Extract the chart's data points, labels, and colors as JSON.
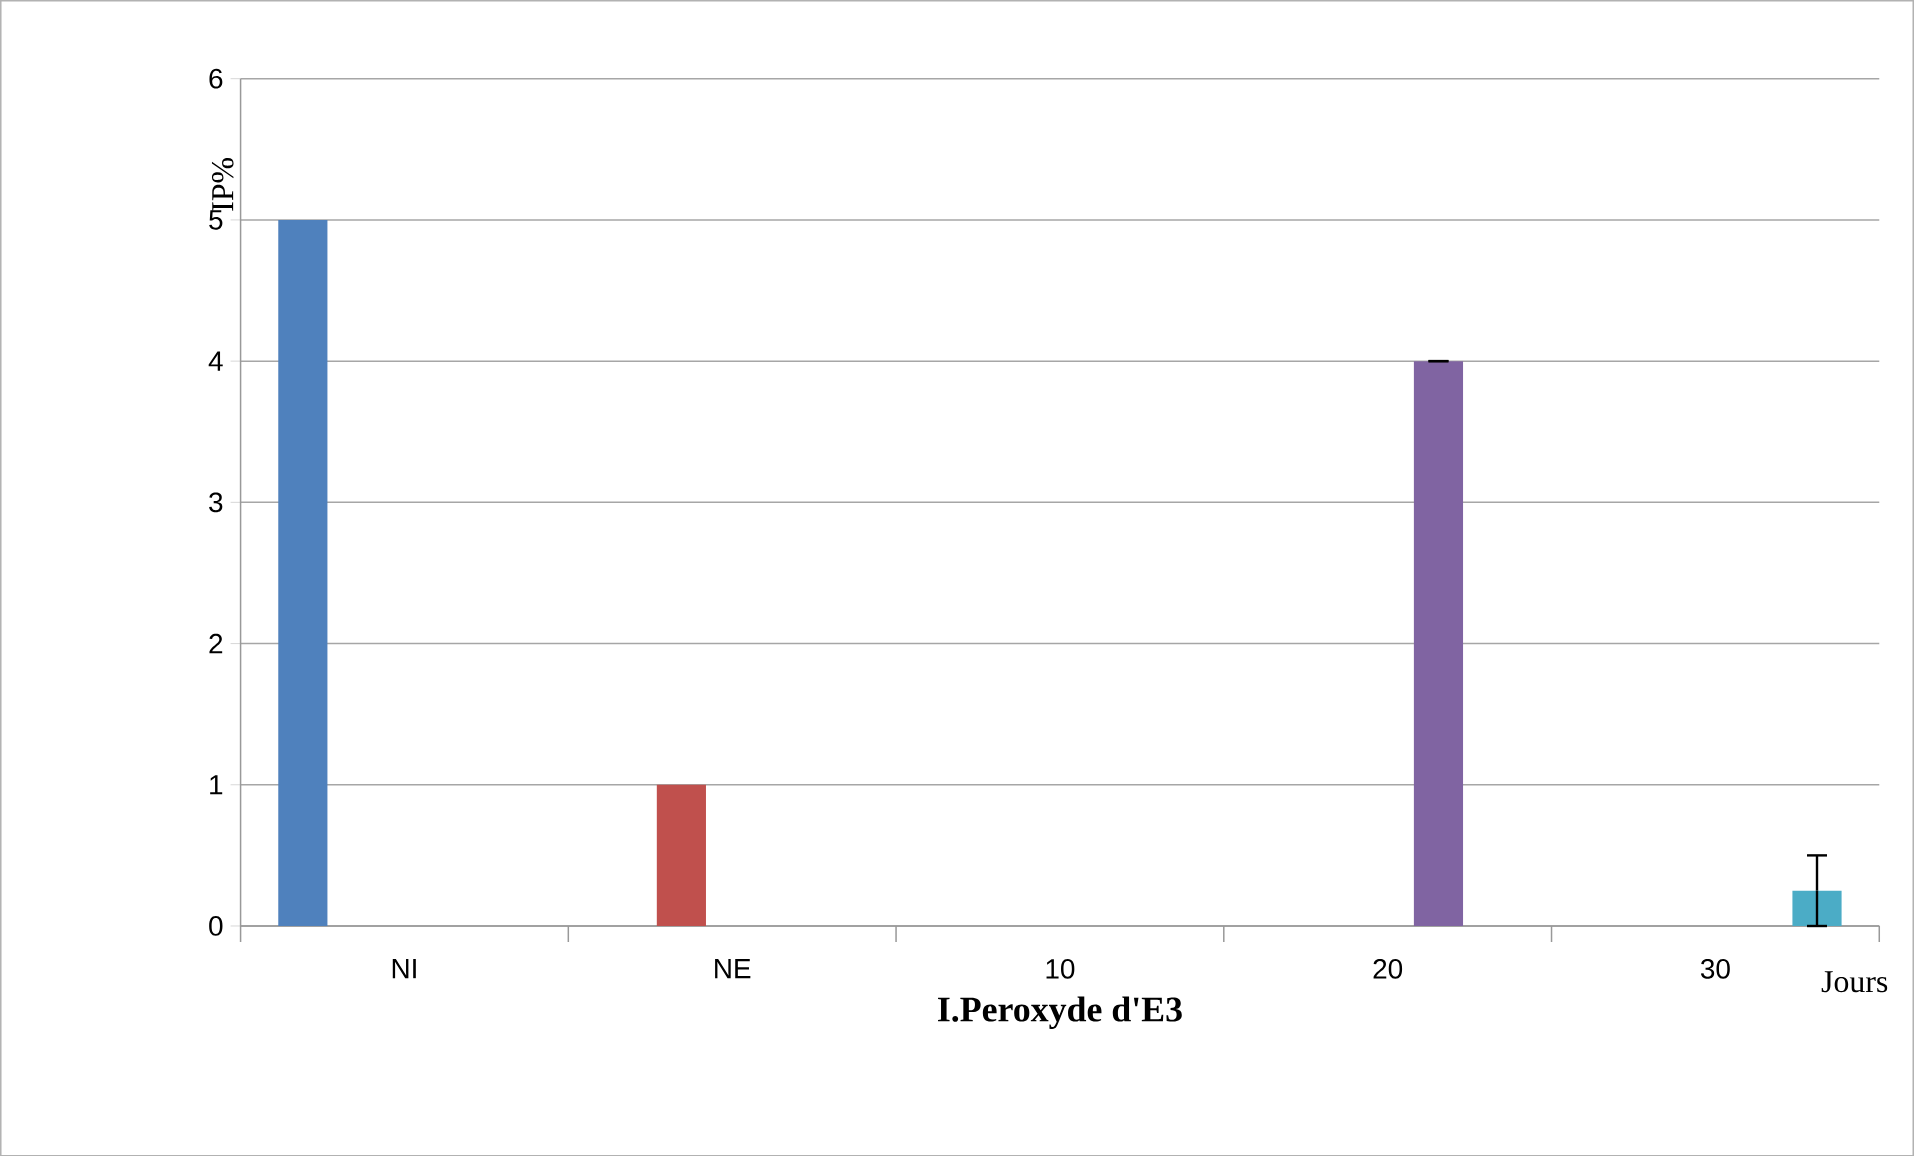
{
  "chart_data": {
    "type": "bar",
    "xlabel": "I.Peroxyde d'E3",
    "ylabel": "IP%",
    "categories": [
      "NI",
      "NE",
      "10",
      "20",
      "30"
    ],
    "series": [
      {
        "color": "#4f81bd",
        "values": [
          5,
          null,
          null,
          null,
          null
        ]
      },
      {
        "color": "#c0504d",
        "values": [
          null,
          1,
          null,
          null,
          null
        ]
      },
      {
        "color": "#9bbb59",
        "values": [
          null,
          null,
          0,
          null,
          null
        ]
      },
      {
        "color": "#8064a2",
        "values": [
          null,
          null,
          null,
          4,
          null
        ],
        "errors": [
          null,
          null,
          null,
          0,
          null
        ]
      },
      {
        "color": "#4bacc6",
        "values": [
          null,
          null,
          null,
          null,
          0.25
        ],
        "errors": [
          null,
          null,
          null,
          null,
          0.25
        ]
      }
    ],
    "ylim": [
      0,
      6
    ],
    "yticks": [
      0,
      1,
      2,
      3,
      4,
      5,
      6
    ],
    "grid": "y",
    "annotations": [
      "Jours"
    ]
  }
}
